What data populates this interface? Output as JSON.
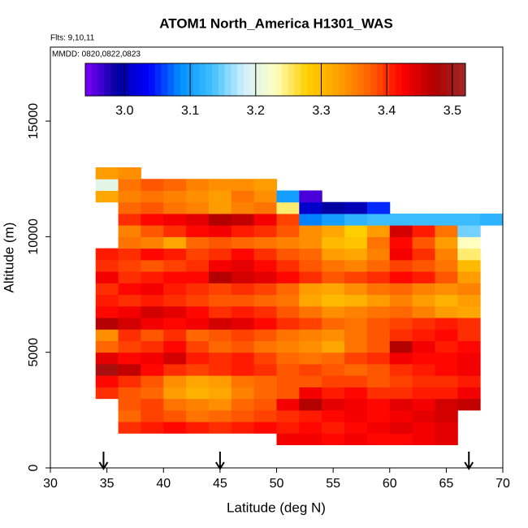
{
  "chart_data": {
    "type": "heatmap",
    "title": "ATOM1 North_America H1301_WAS",
    "subtitle": "Flts: 9,10,11",
    "annotation": "MMDD: 0820,0822,0823",
    "xlabel": "Latitude (deg N)",
    "ylabel": "Altitude (m)",
    "xlim": [
      30,
      70
    ],
    "xticks": [
      30,
      35,
      40,
      45,
      50,
      55,
      60,
      65,
      70
    ],
    "ylim": [
      0,
      18200
    ],
    "yticks": [
      0,
      5000,
      10000,
      15000
    ],
    "xbins": [
      34,
      36,
      38,
      40,
      42,
      44,
      46,
      48,
      50,
      52,
      54,
      56,
      58,
      60,
      62,
      64,
      66,
      68,
      70
    ],
    "ybins": [
      1000,
      1500,
      2000,
      2500,
      3000,
      3500,
      4000,
      4500,
      5000,
      5500,
      6000,
      6500,
      7000,
      7500,
      8000,
      8500,
      9000,
      9500,
      10000,
      10500,
      11000,
      11500,
      12000,
      12500,
      13000
    ],
    "z": [
      [
        null,
        null,
        null,
        null,
        null,
        null,
        null,
        null,
        3.43,
        3.43,
        3.42,
        3.43,
        3.42,
        3.42,
        3.43,
        3.44,
        null,
        null
      ],
      [
        null,
        3.4,
        3.41,
        3.42,
        3.41,
        3.4,
        3.41,
        3.42,
        3.41,
        3.42,
        3.41,
        3.42,
        3.43,
        3.44,
        3.43,
        3.44,
        null,
        null
      ],
      [
        null,
        3.37,
        3.39,
        3.38,
        3.36,
        3.37,
        3.38,
        3.39,
        3.4,
        3.41,
        3.42,
        3.43,
        3.42,
        3.43,
        3.44,
        3.45,
        null,
        null
      ],
      [
        null,
        3.38,
        3.39,
        3.36,
        3.35,
        3.34,
        3.37,
        3.38,
        3.43,
        3.47,
        3.44,
        3.43,
        3.42,
        3.44,
        3.43,
        3.45,
        3.46,
        null
      ],
      [
        3.4,
        3.38,
        3.37,
        3.33,
        3.31,
        3.32,
        3.35,
        3.37,
        3.38,
        3.43,
        3.41,
        3.42,
        3.4,
        3.4,
        3.41,
        3.41,
        3.43,
        null
      ],
      [
        3.42,
        3.4,
        3.38,
        3.34,
        3.32,
        3.33,
        3.36,
        3.37,
        3.38,
        3.38,
        3.39,
        3.39,
        3.38,
        3.39,
        3.4,
        3.4,
        3.41,
        null
      ],
      [
        3.49,
        3.46,
        3.42,
        3.4,
        3.39,
        3.4,
        3.41,
        3.4,
        3.38,
        3.39,
        3.38,
        3.37,
        3.38,
        3.4,
        3.41,
        3.42,
        3.43,
        null
      ],
      [
        3.44,
        3.42,
        3.43,
        3.45,
        3.41,
        3.4,
        3.41,
        3.39,
        3.37,
        3.36,
        3.37,
        3.39,
        3.4,
        3.43,
        3.42,
        3.42,
        3.43,
        null
      ],
      [
        3.37,
        3.39,
        3.4,
        3.42,
        3.39,
        3.37,
        3.38,
        3.36,
        3.35,
        3.34,
        3.32,
        3.36,
        3.38,
        3.47,
        3.43,
        3.41,
        3.42,
        null
      ],
      [
        3.34,
        3.4,
        3.38,
        3.4,
        3.37,
        3.38,
        3.39,
        3.38,
        3.36,
        3.35,
        3.34,
        3.36,
        3.38,
        3.4,
        3.41,
        3.42,
        3.4,
        null
      ],
      [
        3.47,
        3.45,
        3.43,
        3.42,
        3.43,
        3.45,
        3.44,
        3.42,
        3.4,
        3.39,
        3.37,
        3.36,
        3.38,
        3.39,
        3.4,
        3.41,
        3.4,
        null
      ],
      [
        3.42,
        3.43,
        3.45,
        3.44,
        3.42,
        3.4,
        3.41,
        3.4,
        3.38,
        3.36,
        3.34,
        3.35,
        3.36,
        3.37,
        3.35,
        3.33,
        3.32,
        null
      ],
      [
        3.41,
        3.4,
        3.41,
        3.4,
        3.39,
        3.38,
        3.38,
        3.37,
        3.36,
        3.32,
        3.3,
        3.31,
        3.33,
        3.35,
        3.33,
        3.31,
        3.33,
        null
      ],
      [
        3.4,
        3.42,
        3.43,
        3.41,
        3.4,
        3.39,
        3.4,
        3.39,
        3.37,
        3.33,
        3.32,
        3.34,
        3.36,
        3.37,
        3.35,
        3.34,
        3.35,
        null
      ],
      [
        3.43,
        3.4,
        3.41,
        3.42,
        3.42,
        3.47,
        3.45,
        3.44,
        3.42,
        3.4,
        3.38,
        3.39,
        3.4,
        3.42,
        3.41,
        3.38,
        3.33,
        null
      ],
      [
        3.4,
        3.39,
        3.38,
        3.39,
        3.4,
        3.43,
        3.44,
        3.42,
        3.4,
        3.38,
        3.36,
        3.35,
        3.37,
        3.39,
        3.38,
        3.36,
        3.3,
        null
      ],
      [
        3.41,
        3.4,
        3.42,
        3.41,
        3.39,
        3.4,
        3.42,
        3.4,
        3.38,
        3.37,
        3.33,
        3.32,
        3.35,
        3.43,
        3.4,
        3.35,
        3.25,
        null
      ],
      [
        null,
        3.36,
        3.35,
        3.32,
        3.37,
        3.38,
        3.37,
        3.36,
        3.35,
        3.34,
        3.3,
        3.29,
        3.36,
        3.42,
        3.38,
        3.33,
        3.23,
        null
      ],
      [
        null,
        3.35,
        3.38,
        3.4,
        3.42,
        3.43,
        3.41,
        3.4,
        3.38,
        3.34,
        3.32,
        3.28,
        3.33,
        3.45,
        3.41,
        3.36,
        3.15,
        null
      ],
      [
        null,
        3.4,
        3.42,
        3.43,
        3.44,
        3.47,
        3.46,
        3.43,
        3.39,
        3.08,
        3.1,
        3.12,
        3.13,
        3.13,
        3.13,
        3.13,
        3.13,
        3.12
      ],
      [
        null,
        3.37,
        3.38,
        3.36,
        3.35,
        3.33,
        3.35,
        3.36,
        3.25,
        3.01,
        2.99,
        3.0,
        3.05,
        null,
        null,
        null,
        null,
        null
      ],
      [
        3.32,
        3.35,
        3.36,
        3.35,
        3.34,
        3.33,
        3.36,
        3.34,
        3.1,
        2.96,
        null,
        null,
        null,
        null,
        null,
        null,
        null,
        null
      ],
      [
        3.2,
        3.36,
        3.38,
        3.37,
        3.35,
        3.34,
        3.34,
        3.33,
        null,
        null,
        null,
        null,
        null,
        null,
        null,
        null,
        null,
        null
      ],
      [
        3.33,
        3.34,
        null,
        null,
        null,
        null,
        null,
        null,
        null,
        null,
        null,
        null,
        null,
        null,
        null,
        null,
        null,
        null
      ]
    ],
    "zlim": [
      2.94,
      3.52
    ],
    "zticks": [
      {
        "value": 3,
        "label": "3.0"
      },
      {
        "value": 3.1,
        "label": "3.1"
      },
      {
        "value": 3.2,
        "label": "3.2"
      },
      {
        "value": 3.3,
        "label": "3.3"
      },
      {
        "value": 3.4,
        "label": "3.4"
      },
      {
        "value": 3.5,
        "label": "3.5"
      }
    ],
    "colors": [
      "#7f00ff",
      "#0000a0",
      "#0000ff",
      "#0090ff",
      "#40c0ff",
      "#d0f0ff",
      "#ffffc0",
      "#ffd000",
      "#ffa000",
      "#ff6000",
      "#ff0000",
      "#b00000",
      "#a02828"
    ],
    "arrows_x": [
      34.7,
      45,
      67
    ]
  }
}
